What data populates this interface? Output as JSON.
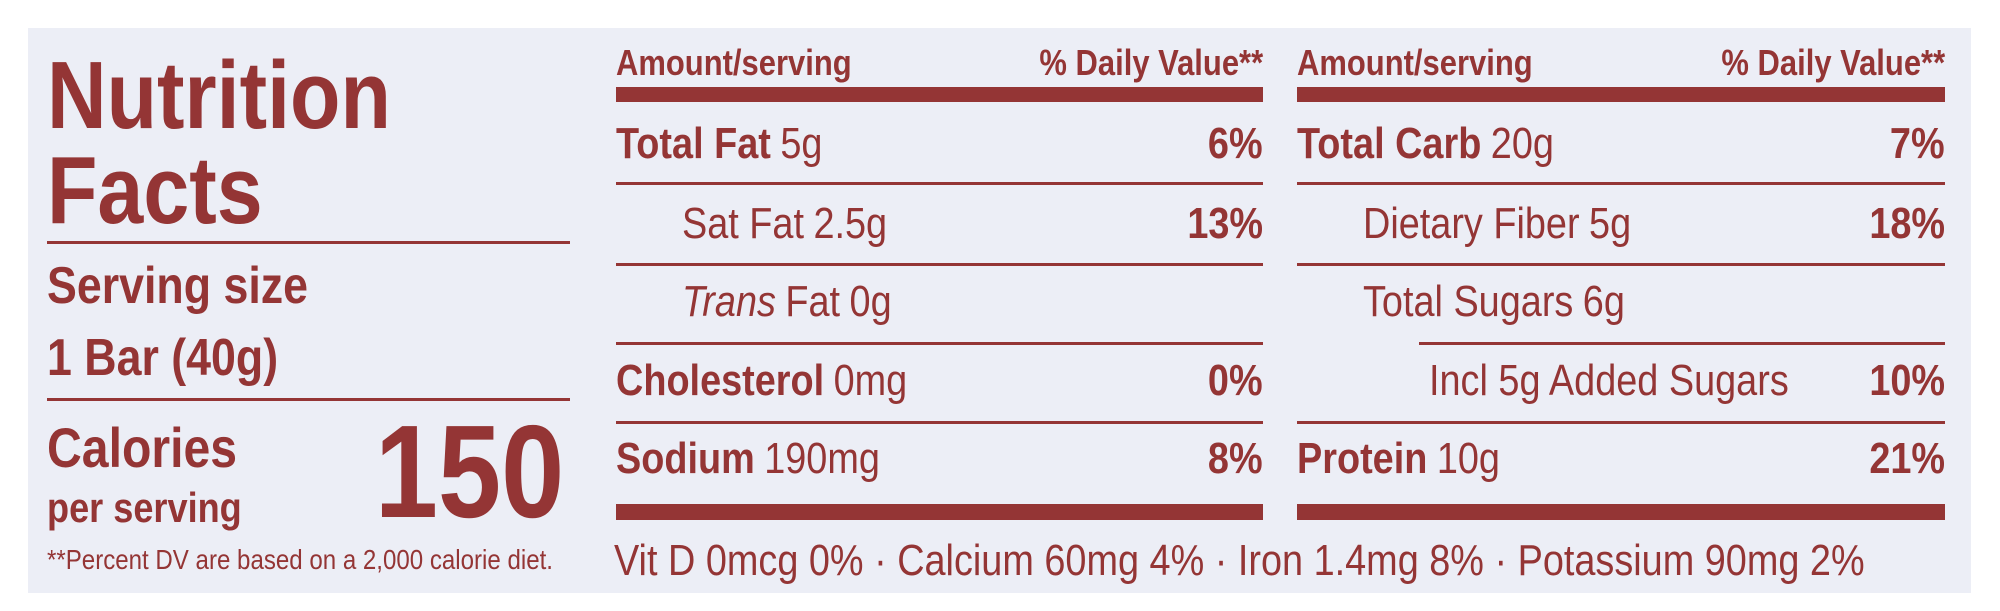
{
  "title": {
    "line1": "Nutrition",
    "line2": "Facts"
  },
  "serving": {
    "label": "Serving size",
    "amount": "1 Bar (40g)"
  },
  "calories": {
    "label": "Calories",
    "sublabel": "per serving",
    "value": 150
  },
  "footnote": "**Percent DV are based on a 2,000 calorie diet.",
  "columns": [
    {
      "header_amount": "Amount/serving",
      "header_dv": "% Daily Value**",
      "rows": [
        {
          "name": "Total Fat",
          "amount": "5g",
          "dv": "6%",
          "level": 0
        },
        {
          "name": "Sat Fat",
          "amount": "2.5g",
          "dv": "13%",
          "level": 1
        },
        {
          "name_italic": "Trans",
          "name": "Fat",
          "amount": "0g",
          "level": 1
        },
        {
          "name": "Cholesterol",
          "amount": "0mg",
          "dv": "0%",
          "level": 0
        },
        {
          "name": "Sodium",
          "amount": "190mg",
          "dv": "8%",
          "level": 0
        }
      ]
    },
    {
      "header_amount": "Amount/serving",
      "header_dv": "% Daily Value**",
      "rows": [
        {
          "name": "Total Carb",
          "amount": "20g",
          "dv": "7%",
          "level": 0
        },
        {
          "name": "Dietary Fiber",
          "amount": "5g",
          "dv": "18%",
          "level": 1
        },
        {
          "name": "Total Sugars",
          "amount": "6g",
          "level": 1
        },
        {
          "name": "Incl 5g Added Sugars",
          "dv": "10%",
          "level": 2
        },
        {
          "name": "Protein",
          "amount": "10g",
          "dv": "21%",
          "level": 0
        }
      ]
    }
  ],
  "micronutrients": "Vit D 0mcg 0% · Calcium 60mg 4% · Iron 1.4mg 8% · Potassium 90mg 2%"
}
